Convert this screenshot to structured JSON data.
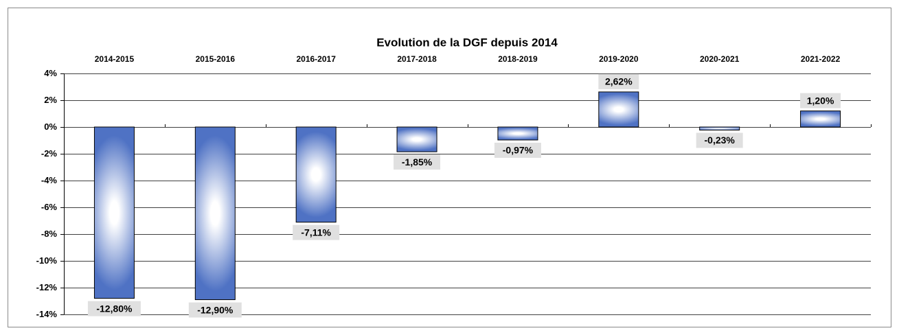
{
  "chart_data": {
    "type": "bar",
    "title": "Evolution de la DGF depuis 2014",
    "categories": [
      "2014-2015",
      "2015-2016",
      "2016-2017",
      "2017-2018",
      "2018-2019",
      "2019-2020",
      "2020-2021",
      "2021-2022"
    ],
    "values": [
      -12.8,
      -12.9,
      -7.11,
      -1.85,
      -0.97,
      2.62,
      -0.23,
      1.2
    ],
    "value_labels": [
      "-12,80%",
      "-12,90%",
      "-7,11%",
      "-1,85%",
      "-0,97%",
      "2,62%",
      "-0,23%",
      "1,20%"
    ],
    "color": "#4f72c4",
    "ylim": [
      -14,
      4
    ],
    "yticks": [
      {
        "value": -14,
        "label": "-14%"
      },
      {
        "value": -12,
        "label": "-12%"
      },
      {
        "value": -10,
        "label": "-10%"
      },
      {
        "value": -8,
        "label": "-8%"
      },
      {
        "value": -6,
        "label": "-6%"
      },
      {
        "value": -4,
        "label": "-4%"
      },
      {
        "value": -2,
        "label": "-2%"
      },
      {
        "value": 0,
        "label": "0%"
      },
      {
        "value": 2,
        "label": "2%"
      },
      {
        "value": 4,
        "label": "4%"
      }
    ],
    "grid": true
  }
}
